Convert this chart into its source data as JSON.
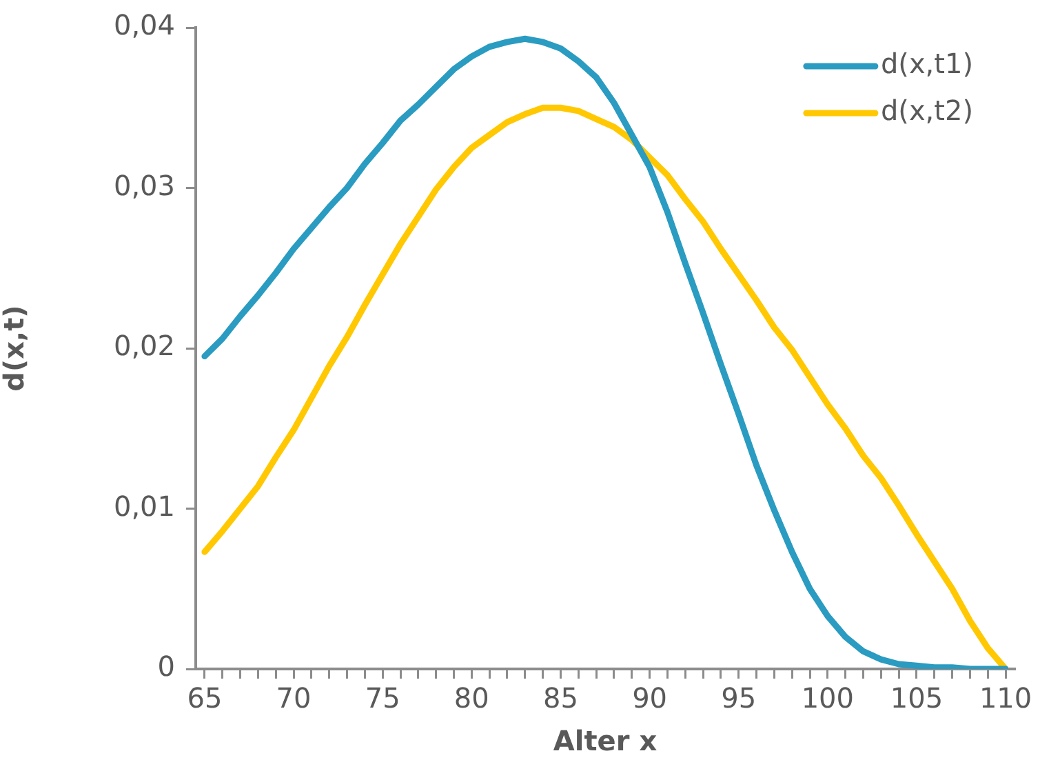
{
  "chart_data": {
    "type": "line",
    "xlabel": "Alter x",
    "ylabel": "d(x,t)",
    "x": [
      65,
      66,
      67,
      68,
      69,
      70,
      71,
      72,
      73,
      74,
      75,
      76,
      77,
      78,
      79,
      80,
      81,
      82,
      83,
      84,
      85,
      86,
      87,
      88,
      89,
      90,
      91,
      92,
      93,
      94,
      95,
      96,
      97,
      98,
      99,
      100,
      101,
      102,
      103,
      104,
      105,
      106,
      107,
      108,
      109,
      110
    ],
    "series": [
      {
        "name": "d(x,t1)",
        "color": "#2a9bc1",
        "values": [
          0.0195,
          0.0206,
          0.022,
          0.0233,
          0.0247,
          0.0262,
          0.0275,
          0.0288,
          0.03,
          0.0315,
          0.0328,
          0.0342,
          0.0352,
          0.0363,
          0.0374,
          0.0382,
          0.0388,
          0.0391,
          0.0393,
          0.0391,
          0.0387,
          0.0379,
          0.0369,
          0.0353,
          0.0333,
          0.0313,
          0.0285,
          0.0253,
          0.0222,
          0.019,
          0.0159,
          0.0127,
          0.0099,
          0.0073,
          0.005,
          0.0033,
          0.002,
          0.0011,
          0.0006,
          0.0003,
          0.0002,
          0.0001,
          0.0001,
          0,
          0,
          0
        ]
      },
      {
        "name": "d(x,t2)",
        "color": "#ffc800",
        "values": [
          0.0073,
          0.0086,
          0.01,
          0.0114,
          0.0132,
          0.0149,
          0.0169,
          0.0189,
          0.0207,
          0.0227,
          0.0246,
          0.0265,
          0.0282,
          0.0299,
          0.0313,
          0.0325,
          0.0333,
          0.0341,
          0.0346,
          0.035,
          0.035,
          0.0348,
          0.0343,
          0.0338,
          0.033,
          0.0319,
          0.0308,
          0.0293,
          0.0279,
          0.0262,
          0.0246,
          0.023,
          0.0213,
          0.0199,
          0.0182,
          0.0165,
          0.015,
          0.0133,
          0.0119,
          0.0102,
          0.0084,
          0.0067,
          0.005,
          0.003,
          0.0013,
          0
        ]
      }
    ],
    "xlim": [
      64.5,
      110.5
    ],
    "xticks": [
      65,
      {
        "value": 66,
        "label": null
      },
      {
        "value": 67,
        "label": null
      },
      {
        "value": 68,
        "label": null
      },
      {
        "value": 69,
        "label": null
      },
      70,
      {
        "value": 71,
        "label": null
      },
      {
        "value": 72,
        "label": null
      },
      {
        "value": 73,
        "label": null
      },
      {
        "value": 74,
        "label": null
      },
      75,
      {
        "value": 76,
        "label": null
      },
      {
        "value": 77,
        "label": null
      },
      {
        "value": 78,
        "label": null
      },
      {
        "value": 79,
        "label": null
      },
      80,
      {
        "value": 81,
        "label": null
      },
      {
        "value": 82,
        "label": null
      },
      {
        "value": 83,
        "label": null
      },
      {
        "value": 84,
        "label": null
      },
      85,
      {
        "value": 86,
        "label": null
      },
      {
        "value": 87,
        "label": null
      },
      {
        "value": 88,
        "label": null
      },
      {
        "value": 89,
        "label": null
      },
      90,
      {
        "value": 91,
        "label": null
      },
      {
        "value": 92,
        "label": null
      },
      {
        "value": 93,
        "label": null
      },
      {
        "value": 94,
        "label": null
      },
      95,
      {
        "value": 96,
        "label": null
      },
      {
        "value": 97,
        "label": null
      },
      {
        "value": 98,
        "label": null
      },
      {
        "value": 99,
        "label": null
      },
      100,
      {
        "value": 101,
        "label": null
      },
      {
        "value": 102,
        "label": null
      },
      {
        "value": 103,
        "label": null
      },
      {
        "value": 104,
        "label": null
      },
      105,
      {
        "value": 106,
        "label": null
      },
      {
        "value": 107,
        "label": null
      },
      {
        "value": 108,
        "label": null
      },
      {
        "value": 109,
        "label": null
      },
      110
    ],
    "ylim": [
      0,
      0.04
    ],
    "yticks": [
      0,
      {
        "value": 0.01,
        "label": "0,01"
      },
      {
        "value": 0.02,
        "label": "0,02"
      },
      {
        "value": 0.03,
        "label": "0,03"
      },
      {
        "value": 0.04,
        "label": "0,04"
      }
    ],
    "legend": "top right",
    "marker": "none",
    "line_style": "solid"
  }
}
